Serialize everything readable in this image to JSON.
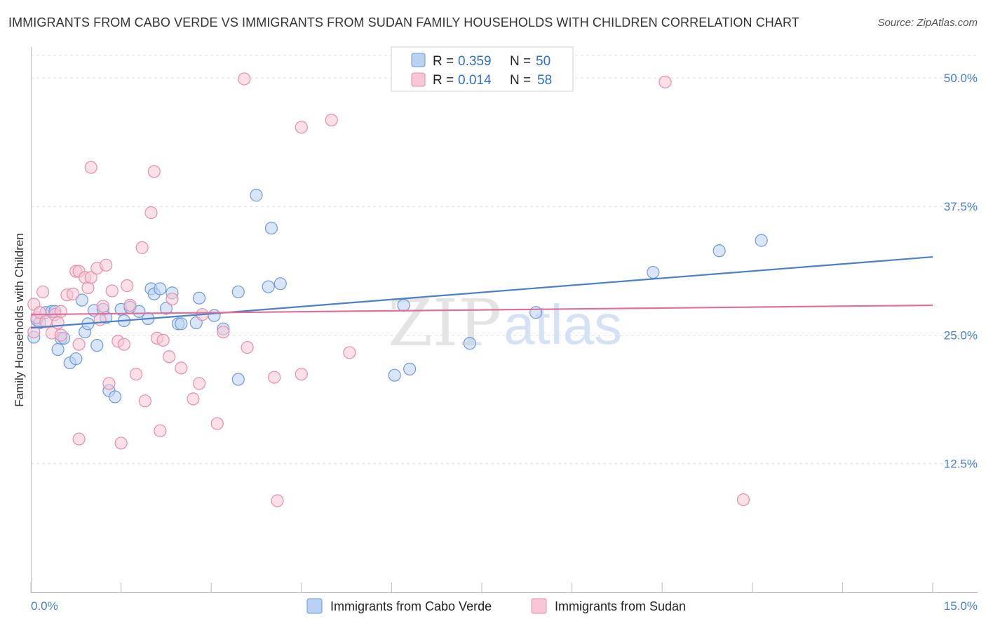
{
  "title": "IMMIGRANTS FROM CABO VERDE VS IMMIGRANTS FROM SUDAN FAMILY HOUSEHOLDS WITH CHILDREN CORRELATION CHART",
  "source": "Source: ZipAtlas.com",
  "watermark": {
    "zip": "ZIP",
    "atlas": "atlas"
  },
  "legend": {
    "r_label": "R =",
    "n_label": "N =",
    "series": [
      {
        "name": "Immigrants from Cabo Verde",
        "r": "0.359",
        "n": "50",
        "fill": "#b9d1f3",
        "stroke": "#6f9ad6"
      },
      {
        "name": "Immigrants from Sudan",
        "r": "0.014",
        "n": "58",
        "fill": "#f8c6d6",
        "stroke": "#e38fab"
      }
    ]
  },
  "chart_data": {
    "type": "scatter",
    "title": "IMMIGRANTS FROM CABO VERDE VS IMMIGRANTS FROM SUDAN FAMILY HOUSEHOLDS WITH CHILDREN CORRELATION CHART",
    "xlabel": "",
    "ylabel": "Family Households with Children",
    "xlim": [
      0,
      15
    ],
    "ylim": [
      0,
      53
    ],
    "x_tick_labels": [
      "0.0%",
      "15.0%"
    ],
    "y_ticks": [
      {
        "value": 12.5,
        "label": "12.5%"
      },
      {
        "value": 25.0,
        "label": "25.0%"
      },
      {
        "value": 37.5,
        "label": "37.5%"
      },
      {
        "value": 50.0,
        "label": "50.0%"
      }
    ],
    "series": [
      {
        "name": "Immigrants from Cabo Verde",
        "color": "#4a80c8",
        "trend": {
          "x": [
            0,
            15
          ],
          "y": [
            25.7,
            32.6
          ]
        },
        "points": [
          [
            0.05,
            24.8
          ],
          [
            0.1,
            26.5
          ],
          [
            0.15,
            26.2
          ],
          [
            0.25,
            27.2
          ],
          [
            0.35,
            27.3
          ],
          [
            0.4,
            27.3
          ],
          [
            0.45,
            23.6
          ],
          [
            0.5,
            24.7
          ],
          [
            0.55,
            24.7
          ],
          [
            0.65,
            22.3
          ],
          [
            0.75,
            22.7
          ],
          [
            0.85,
            28.4
          ],
          [
            0.9,
            25.3
          ],
          [
            0.95,
            26.1
          ],
          [
            1.05,
            27.4
          ],
          [
            1.1,
            24.0
          ],
          [
            1.2,
            27.5
          ],
          [
            1.25,
            26.7
          ],
          [
            1.3,
            19.6
          ],
          [
            1.4,
            19.0
          ],
          [
            1.5,
            27.5
          ],
          [
            1.55,
            26.4
          ],
          [
            1.65,
            27.7
          ],
          [
            1.8,
            27.3
          ],
          [
            1.95,
            26.6
          ],
          [
            2.0,
            29.5
          ],
          [
            2.05,
            29.0
          ],
          [
            2.15,
            29.5
          ],
          [
            2.25,
            27.6
          ],
          [
            2.35,
            29.1
          ],
          [
            2.45,
            26.1
          ],
          [
            2.5,
            26.1
          ],
          [
            2.75,
            26.2
          ],
          [
            2.8,
            28.6
          ],
          [
            3.05,
            26.9
          ],
          [
            3.2,
            25.6
          ],
          [
            3.45,
            29.2
          ],
          [
            3.45,
            20.7
          ],
          [
            3.75,
            38.6
          ],
          [
            3.95,
            29.7
          ],
          [
            4.0,
            35.4
          ],
          [
            4.15,
            30.0
          ],
          [
            6.05,
            21.1
          ],
          [
            6.2,
            27.9
          ],
          [
            6.3,
            21.7
          ],
          [
            7.3,
            24.2
          ],
          [
            8.4,
            27.2
          ],
          [
            10.35,
            31.1
          ],
          [
            11.45,
            33.2
          ],
          [
            12.15,
            34.2
          ]
        ]
      },
      {
        "name": "Immigrants from Sudan",
        "color": "#e0709a",
        "trend": {
          "x": [
            0,
            15
          ],
          "y": [
            27.0,
            27.9
          ]
        },
        "points": [
          [
            0.05,
            28.0
          ],
          [
            0.05,
            25.3
          ],
          [
            0.1,
            26.7
          ],
          [
            0.15,
            27.2
          ],
          [
            0.2,
            29.2
          ],
          [
            0.25,
            26.3
          ],
          [
            0.35,
            25.2
          ],
          [
            0.4,
            27.0
          ],
          [
            0.45,
            26.2
          ],
          [
            0.5,
            25.0
          ],
          [
            0.6,
            28.9
          ],
          [
            0.7,
            29.0
          ],
          [
            0.75,
            31.2
          ],
          [
            0.8,
            24.1
          ],
          [
            0.8,
            31.2
          ],
          [
            0.9,
            30.6
          ],
          [
            0.95,
            29.6
          ],
          [
            1.0,
            30.6
          ],
          [
            1.1,
            31.5
          ],
          [
            1.15,
            26.5
          ],
          [
            1.2,
            27.8
          ],
          [
            1.25,
            31.8
          ],
          [
            1.3,
            20.3
          ],
          [
            1.35,
            29.3
          ],
          [
            1.45,
            24.4
          ],
          [
            1.55,
            24.1
          ],
          [
            1.6,
            29.8
          ],
          [
            1.65,
            27.9
          ],
          [
            1.75,
            21.2
          ],
          [
            1.85,
            33.5
          ],
          [
            1.9,
            18.6
          ],
          [
            2.0,
            36.9
          ],
          [
            2.05,
            40.9
          ],
          [
            2.1,
            24.7
          ],
          [
            2.15,
            15.7
          ],
          [
            2.2,
            24.5
          ],
          [
            2.3,
            22.9
          ],
          [
            2.35,
            28.5
          ],
          [
            2.5,
            21.8
          ],
          [
            2.7,
            18.8
          ],
          [
            2.8,
            20.3
          ],
          [
            2.85,
            27.0
          ],
          [
            3.1,
            16.4
          ],
          [
            3.2,
            25.3
          ],
          [
            3.55,
            49.9
          ],
          [
            3.6,
            23.8
          ],
          [
            4.1,
            8.9
          ],
          [
            4.05,
            20.9
          ],
          [
            4.5,
            21.2
          ],
          [
            4.5,
            45.2
          ],
          [
            5.0,
            45.9
          ],
          [
            5.3,
            23.3
          ],
          [
            1.0,
            41.3
          ],
          [
            0.8,
            14.9
          ],
          [
            1.5,
            14.5
          ],
          [
            10.55,
            49.6
          ],
          [
            11.85,
            9.0
          ],
          [
            0.5,
            27.3
          ]
        ]
      }
    ]
  }
}
